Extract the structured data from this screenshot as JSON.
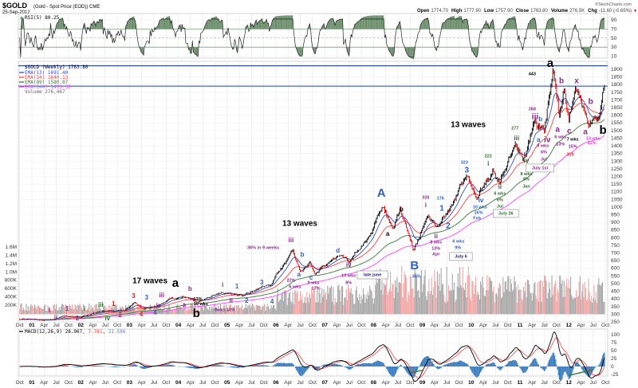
{
  "header": {
    "symbol": "$GOLD",
    "description": "(Gold - Spot Price (EOD)) CME",
    "date": "25-Sep-2012",
    "copyright": "©StockCharts.com",
    "quote": [
      {
        "label": "Open",
        "value": "1774.70"
      },
      {
        "label": "High",
        "value": "1777.90"
      },
      {
        "label": "Low",
        "value": "1757.90"
      },
      {
        "label": "Close",
        "value": "1763.80"
      },
      {
        "label": "Volume",
        "value": "276.5K"
      },
      {
        "label": "Chg",
        "value": "-11.60 (-0.65%)"
      }
    ],
    "down_arrow": "▼"
  },
  "rsi": {
    "legend": "RSI(5) 80.25",
    "ticks": [
      90,
      70,
      50,
      30,
      10
    ]
  },
  "legend": {
    "main": "$GOLD (Weekly) 1763.80",
    "ema13": "EMA(13) 1691.40",
    "ema34": "EMA(34) 1640.13",
    "ema89": "EMA(89) 1580.87",
    "ema144": "EMA(144) 1473.36",
    "volume": "Volume 276,467"
  },
  "macd": {
    "label": "MACD(12,26,9)",
    "v1": "28.967",
    "v2": "7.381",
    "v3": "21.586",
    "ticks": [
      100,
      75,
      50,
      25,
      0,
      -25
    ]
  },
  "colors": {
    "k": "#000000",
    "p": "#8b2a8b",
    "b": "#3060c0",
    "g": "#2f6b2f",
    "r": "#e02020",
    "m": "#e040e0",
    "ema13": "#3050d0",
    "ema34": "#ff4040",
    "ema89": "#3a7a3a",
    "ema144": "#ff40ff",
    "rsiFill": "#6b8e6b"
  },
  "chart_data": {
    "type": "line",
    "title": "$GOLD (Weekly)",
    "ylabel": "Price",
    "ylim": [
      250,
      1900
    ],
    "price_ticks": [
      1900,
      1850,
      1800,
      1750,
      1700,
      1650,
      1600,
      1550,
      1500,
      1450,
      1400,
      1350,
      1300,
      1250,
      1200,
      1150,
      1100,
      1050,
      1000,
      950,
      900,
      850,
      800,
      750,
      700,
      650,
      600,
      550,
      500,
      450,
      400,
      350,
      300,
      250
    ],
    "volume_ticks": [
      "1.6M",
      "1.4M",
      "1.2M",
      "1.0M",
      "800K",
      "600K",
      "400K",
      "200K"
    ],
    "volume_tick_values": [
      1600,
      1400,
      1200,
      1000,
      800,
      600,
      400,
      200
    ],
    "horizontal_lines": [
      1923,
      1790
    ],
    "x_ticks": [
      "Oct",
      "01",
      "Apr",
      "Jul",
      "Oct",
      "02",
      "Apr",
      "Jul",
      "Oct",
      "03",
      "Apr",
      "Jul",
      "Oct",
      "04",
      "Apr",
      "Jul",
      "Oct",
      "05",
      "Apr",
      "Jul",
      "Oct",
      "06",
      "Apr",
      "Jul",
      "Oct",
      "07",
      "Apr",
      "Jul",
      "Oct",
      "08",
      "Apr",
      "Jul",
      "Oct",
      "09",
      "Apr",
      "Jul",
      "Oct",
      "10",
      "Apr",
      "Jul",
      "Oct",
      "11",
      "Apr",
      "Jul",
      "Oct",
      "12",
      "Apr",
      "Jul",
      "Oct"
    ],
    "price_path": [
      [
        2000.75,
        270
      ],
      [
        2001.3,
        258
      ],
      [
        2001.7,
        290
      ],
      [
        2002.0,
        280
      ],
      [
        2002.4,
        322
      ],
      [
        2002.9,
        318
      ],
      [
        2003.1,
        375
      ],
      [
        2003.3,
        330
      ],
      [
        2003.6,
        360
      ],
      [
        2003.9,
        405
      ],
      [
        2004.05,
        420
      ],
      [
        2004.4,
        380
      ],
      [
        2004.9,
        450
      ],
      [
        2005.3,
        420
      ],
      [
        2005.9,
        500
      ],
      [
        2006.35,
        720
      ],
      [
        2006.5,
        570
      ],
      [
        2006.7,
        640
      ],
      [
        2006.8,
        565
      ],
      [
        2007.3,
        690
      ],
      [
        2007.5,
        650
      ],
      [
        2007.9,
        800
      ],
      [
        2008.2,
        1000
      ],
      [
        2008.4,
        860
      ],
      [
        2008.55,
        980
      ],
      [
        2008.82,
        720
      ],
      [
        2009.1,
        940
      ],
      [
        2009.3,
        870
      ],
      [
        2009.5,
        960
      ],
      [
        2009.9,
        1200
      ],
      [
        2010.1,
        1060
      ],
      [
        2010.45,
        1250
      ],
      [
        2010.58,
        1160
      ],
      [
        2010.9,
        1420
      ],
      [
        2011.05,
        1320
      ],
      [
        2011.3,
        1550
      ],
      [
        2011.5,
        1500
      ],
      [
        2011.68,
        1900
      ],
      [
        2011.8,
        1600
      ],
      [
        2011.9,
        1780
      ],
      [
        2012.0,
        1560
      ],
      [
        2012.15,
        1780
      ],
      [
        2012.4,
        1550
      ],
      [
        2012.6,
        1600
      ],
      [
        2012.73,
        1770
      ]
    ],
    "annotations": [
      [
        "a",
        2011.62,
        1936,
        "k",
        "L"
      ],
      [
        "443",
        2011.25,
        1869,
        "k",
        "s"
      ],
      [
        "b",
        2011.85,
        1822,
        "p",
        "M"
      ],
      [
        "x",
        2012.16,
        1822,
        "p",
        "M"
      ],
      [
        "b",
        2012.45,
        1687,
        "p",
        "M"
      ],
      [
        "a",
        2011.77,
        1504,
        "p",
        "M"
      ],
      [
        "6 wks",
        2011.83,
        1457,
        "p",
        "s"
      ],
      [
        "13%",
        2011.83,
        1411,
        "p",
        "s"
      ],
      [
        "c",
        2012.01,
        1494,
        "p",
        "M"
      ],
      [
        "7 wks",
        2012.08,
        1442,
        "k",
        "s"
      ],
      [
        "15%",
        2012.08,
        1395,
        "p",
        "s"
      ],
      [
        "319",
        2012.03,
        1343,
        "r",
        "s"
      ],
      [
        "a",
        2012.34,
        1489,
        "p",
        "M"
      ],
      [
        "13 wks",
        2012.5,
        1463,
        "m",
        "s"
      ],
      [
        "21%",
        2012.47,
        1426,
        "m",
        "s"
      ],
      [
        "b",
        2012.7,
        1484,
        "k",
        "L"
      ],
      [
        "268",
        2011.25,
        1640,
        "p",
        "s"
      ],
      [
        "iii",
        2011.31,
        1588,
        "p",
        "M"
      ],
      [
        "b",
        2011.42,
        1572,
        "b",
        "m"
      ],
      [
        "a",
        2011.38,
        1437,
        "b",
        "m"
      ],
      [
        "iv",
        2011.56,
        1437,
        "p",
        "M"
      ],
      [
        "9 wks",
        2011.47,
        1400,
        "p",
        "s"
      ],
      [
        "6%",
        2011.49,
        1359,
        "p",
        "s"
      ],
      [
        "Jul",
        2011.49,
        1312,
        "p",
        "s"
      ],
      [
        "July 1st",
        2011.41,
        1255,
        "p",
        "box"
      ],
      [
        "277",
        2010.9,
        1515,
        "g",
        "s"
      ],
      [
        "iii",
        2010.93,
        1447,
        "g",
        "m"
      ],
      [
        "13 waves",
        2009.94,
        1536,
        "k",
        "W"
      ],
      [
        "222",
        2010.35,
        1333,
        "g",
        "s"
      ],
      [
        "i",
        2010.35,
        1280,
        "g",
        "m"
      ],
      [
        "iv",
        2011.13,
        1275,
        "g",
        "m"
      ],
      [
        "8 wks",
        2011.13,
        1223,
        "g",
        "s"
      ],
      [
        "8%",
        2011.13,
        1182,
        "g",
        "s"
      ],
      [
        "Jan",
        2011.13,
        1135,
        "g",
        "s"
      ],
      [
        "323",
        2009.86,
        1291,
        "b",
        "s"
      ],
      [
        "3",
        2009.91,
        1239,
        "b",
        "M"
      ],
      [
        "ii",
        2010.59,
        1130,
        "g",
        "m"
      ],
      [
        "6 wks",
        2010.59,
        1088,
        "g",
        "s"
      ],
      [
        "6%",
        2010.59,
        1046,
        "g",
        "s"
      ],
      [
        "Jul",
        2010.59,
        1005,
        "g",
        "s"
      ],
      [
        "July 26",
        2010.71,
        958,
        "g",
        "box"
      ],
      [
        "iv",
        2010.2,
        1041,
        "b",
        "m"
      ],
      [
        "10 wks",
        2010.18,
        999,
        "b",
        "s"
      ],
      [
        "16%",
        2010.15,
        963,
        "b",
        "s"
      ],
      [
        "Feb",
        2010.12,
        926,
        "b",
        "s"
      ],
      [
        "A",
        2008.16,
        1088,
        "b",
        "L"
      ],
      [
        "a",
        2008.29,
        822,
        "k",
        "m"
      ],
      [
        "b",
        2008.57,
        984,
        "k",
        "m"
      ],
      [
        "326",
        2009.07,
        1062,
        "p",
        "s"
      ],
      [
        "i",
        2009.07,
        1010,
        "p",
        "m"
      ],
      [
        "176",
        2009.37,
        1057,
        "b",
        "s"
      ],
      [
        "1",
        2009.4,
        989,
        "b",
        "M"
      ],
      [
        "2",
        2009.53,
        874,
        "b",
        "M"
      ],
      [
        "ii",
        2009.28,
        807,
        "p",
        "m"
      ],
      [
        "8 wks",
        2009.28,
        770,
        "p",
        "s"
      ],
      [
        "13%",
        2009.28,
        729,
        "p",
        "s"
      ],
      [
        "Apr",
        2009.28,
        692,
        "p",
        "s"
      ],
      [
        "6 wks",
        2009.74,
        776,
        "b",
        "s"
      ],
      [
        "9%",
        2009.73,
        734,
        "b",
        "s"
      ],
      [
        "July 6",
        2009.79,
        677,
        "d",
        "box"
      ],
      [
        "B",
        2008.84,
        614,
        "b",
        "L"
      ],
      [
        "34%",
        2008.88,
        546,
        "b",
        "s"
      ],
      [
        "iv",
        2007.49,
        619,
        "p",
        "m"
      ],
      [
        "10 wks",
        2007.49,
        552,
        "p",
        "s"
      ],
      [
        "8%",
        2007.49,
        505,
        "p",
        "s"
      ],
      [
        "late june",
        2007.98,
        557,
        "d",
        "box"
      ],
      [
        "13 waves",
        2006.49,
        890,
        "k",
        "W"
      ],
      [
        "iii",
        2006.31,
        781,
        "p",
        "m"
      ],
      [
        "36% in 9 weeks",
        2005.74,
        734,
        "p",
        "s"
      ],
      [
        "b",
        2006.54,
        687,
        "b",
        "m"
      ],
      [
        "a",
        2006.47,
        557,
        "b",
        "m"
      ],
      [
        "d",
        2007.27,
        713,
        "b",
        "m"
      ],
      [
        "c",
        2006.72,
        536,
        "b",
        "m"
      ],
      [
        "22%",
        2006.31,
        520,
        "p",
        "s"
      ],
      [
        "6 wks",
        2006.39,
        479,
        "p",
        "s"
      ],
      [
        "9 wks",
        2006.77,
        520,
        "p",
        "s"
      ],
      [
        "17%",
        2006.82,
        468,
        "p",
        "s"
      ],
      [
        "1",
        2005.2,
        479,
        "b",
        "m"
      ],
      [
        "3",
        2005.71,
        505,
        "b",
        "m"
      ],
      [
        "2",
        2005.4,
        385,
        "b",
        "m"
      ],
      [
        "4",
        2005.92,
        380,
        "b",
        "m"
      ],
      [
        "ii",
        2005.08,
        385,
        "p",
        "m"
      ],
      [
        "17 waves",
        2003.42,
        515,
        "k",
        "W"
      ],
      [
        "a",
        2003.94,
        500,
        "k",
        "L"
      ],
      [
        "b",
        2004.37,
        302,
        "k",
        "L"
      ],
      [
        "10 wks",
        2004.46,
        359,
        "k",
        "s"
      ],
      [
        "13%",
        2004.4,
        312,
        "k",
        "s"
      ],
      [
        "9wks 10%",
        2004.95,
        328,
        "p",
        "s"
      ],
      [
        "i",
        2004.91,
        489,
        "p",
        "m"
      ],
      [
        "b",
        2004.24,
        463,
        "p",
        "m"
      ],
      [
        "iii",
        2003.66,
        421,
        "p",
        "m"
      ],
      [
        "3",
        2003.35,
        406,
        "b",
        "m"
      ],
      [
        "3",
        2003.08,
        416,
        "r",
        "m"
      ],
      [
        "1",
        2002.67,
        364,
        "r",
        "m"
      ],
      [
        "iii",
        2002.41,
        359,
        "g",
        "m"
      ],
      [
        "i",
        2002.08,
        333,
        "g",
        "m"
      ],
      [
        "1",
        2001.72,
        333,
        "b",
        "m"
      ],
      [
        "i",
        2001.36,
        323,
        "p",
        "m"
      ],
      [
        "ii",
        2001.49,
        276,
        "p",
        "m"
      ],
      [
        "2",
        2001.93,
        255,
        "b",
        "m"
      ],
      [
        "2",
        2002.81,
        292,
        "r",
        "m"
      ],
      [
        "4",
        2003.24,
        297,
        "r",
        "m"
      ],
      [
        "4",
        2003.52,
        307,
        "b",
        "m"
      ],
      [
        "iv",
        2003.6,
        323,
        "p",
        "m"
      ],
      [
        "iv",
        2002.55,
        271,
        "g",
        "m"
      ],
      [
        "a",
        2004.12,
        359,
        "p",
        "m"
      ]
    ]
  }
}
